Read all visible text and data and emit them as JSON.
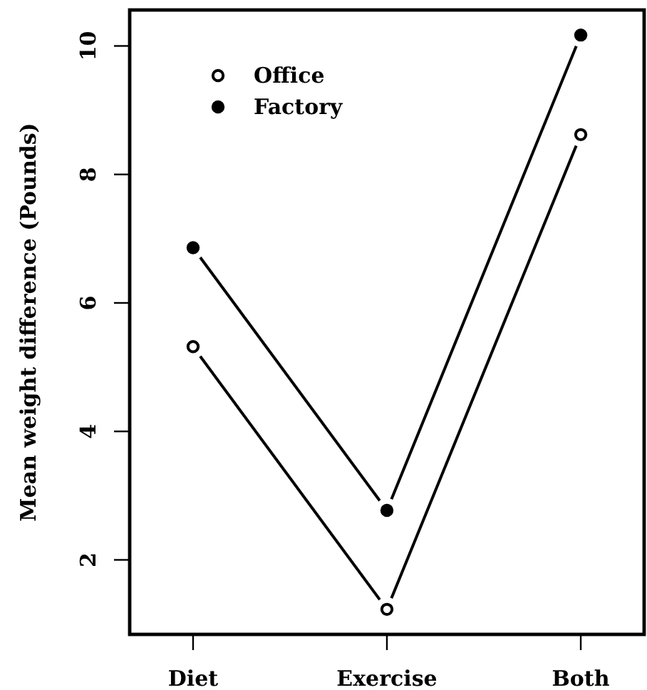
{
  "chart_data": {
    "type": "line",
    "ylabel": "Mean weight difference (Pounds)",
    "categories": [
      "Diet",
      "Exercise",
      "Both"
    ],
    "series": [
      {
        "name": "Office",
        "color": "#000000",
        "values": [
          5.32,
          1.23,
          8.62
        ]
      },
      {
        "name": "Factory",
        "color": "#000000",
        "values": [
          6.86,
          2.77,
          10.17
        ]
      }
    ],
    "ylim": [
      0.84,
      10.56
    ],
    "yticks": [
      2,
      4,
      6,
      8,
      10
    ],
    "legend": "top left",
    "marker": "circle",
    "line_style": "solid"
  }
}
